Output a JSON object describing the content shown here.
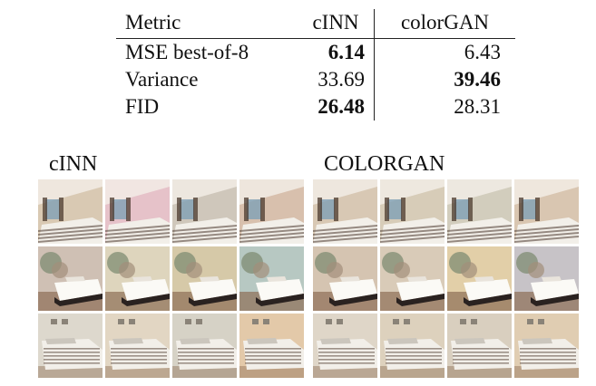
{
  "table": {
    "headers": [
      "Metric",
      "cINN",
      "colorGAN"
    ],
    "rows": [
      {
        "metric": "MSE best-of-8",
        "cinn": "6.14",
        "colorgan": "6.43",
        "best": "cinn"
      },
      {
        "metric": "Variance",
        "cinn": "33.69",
        "colorgan": "39.46",
        "best": "colorgan"
      },
      {
        "metric": "FID",
        "cinn": "26.48",
        "colorgan": "28.31",
        "best": "cinn"
      }
    ]
  },
  "grids": {
    "cinn": {
      "title": "cINN",
      "tints": [
        [
          "#d9c9b3",
          "#e6c2c9",
          "#cfc7bb",
          "#d8c0ad"
        ],
        [
          "#cfc0b4",
          "#ded5bd",
          "#d6c9a8",
          "#b7c8c2"
        ],
        [
          "#ddd8cd",
          "#e2d6c3",
          "#d6d2c6",
          "#e3c9a9"
        ]
      ]
    },
    "colorgan": {
      "title": "COLORGAN",
      "tints": [
        [
          "#d8c8b4",
          "#d7ccb8",
          "#d2cdbd",
          "#d9c6b1"
        ],
        [
          "#d5c4b1",
          "#d9cbb8",
          "#e2cfa8",
          "#c7c3c7"
        ],
        [
          "#dfd6c8",
          "#ddd1bd",
          "#d9cfbf",
          "#e0cdb2"
        ]
      ]
    }
  },
  "colors": {
    "floor": "#8d6e55",
    "wall_dark": "#4b3a2e",
    "sheet": "#f2efe9",
    "stripe": "#6e5e54"
  }
}
